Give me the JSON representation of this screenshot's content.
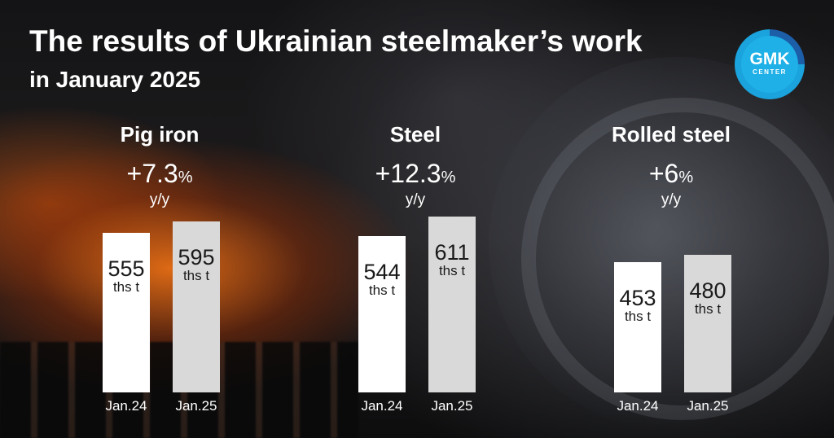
{
  "header": {
    "title": "The results of Ukrainian steelmaker’s work",
    "subtitle": "in January 2025"
  },
  "logo": {
    "main": "GMK",
    "sub": "CENTER",
    "colors": {
      "ring_dark": "#1c5ea8",
      "ring_light": "#1aa3dc",
      "fill": "#1eb0e6"
    }
  },
  "colors": {
    "bar_2024": "#ffffff",
    "bar_2025": "#d9d9d9",
    "text": "#ffffff"
  },
  "chart_data": [
    {
      "type": "bar",
      "title": "Pig iron",
      "growth": "+7.3",
      "growth_unit": "%",
      "growth_label": "y/y",
      "unit": "ths t",
      "categories": [
        "Jan.24",
        "Jan.25"
      ],
      "values": [
        555,
        595
      ],
      "ylim": [
        0,
        640
      ]
    },
    {
      "type": "bar",
      "title": "Steel",
      "growth": "+12.3",
      "growth_unit": "%",
      "growth_label": "y/y",
      "unit": "ths t",
      "categories": [
        "Jan.24",
        "Jan.25"
      ],
      "values": [
        544,
        611
      ],
      "ylim": [
        0,
        640
      ]
    },
    {
      "type": "bar",
      "title": "Rolled steel",
      "growth": "+6",
      "growth_unit": "%",
      "growth_label": "y/y",
      "unit": "ths t",
      "categories": [
        "Jan.24",
        "Jan.25"
      ],
      "values": [
        453,
        480
      ],
      "ylim": [
        0,
        640
      ]
    }
  ]
}
